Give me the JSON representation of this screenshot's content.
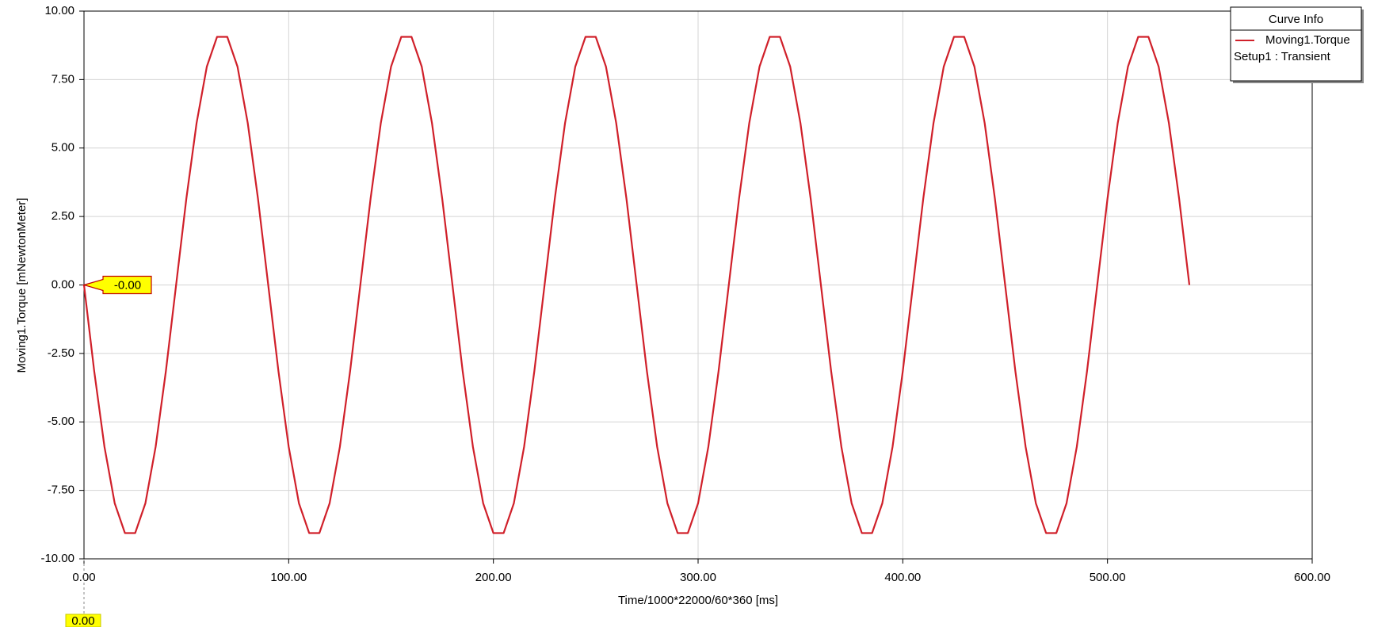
{
  "chart_data": {
    "type": "line",
    "x_label": "Time/1000*22000/60*360 [ms]",
    "y_label": "Moving1.Torque [mNewtonMeter]",
    "legend_title": "Curve Info",
    "legend_subtitle": "Setup1 : Transient",
    "legend_position": "top-right",
    "grid": true,
    "xlim": [
      0,
      600
    ],
    "ylim": [
      -10,
      10
    ],
    "xticks": [
      {
        "value": 0,
        "label": "0.00"
      },
      {
        "value": 100,
        "label": "100.00"
      },
      {
        "value": 200,
        "label": "200.00"
      },
      {
        "value": 300,
        "label": "300.00"
      },
      {
        "value": 400,
        "label": "400.00"
      },
      {
        "value": 500,
        "label": "500.00"
      },
      {
        "value": 600,
        "label": "600.00"
      }
    ],
    "yticks": [
      {
        "value": -10,
        "label": "-10.00"
      },
      {
        "value": -7.5,
        "label": "-7.50"
      },
      {
        "value": -5,
        "label": "-5.00"
      },
      {
        "value": -2.5,
        "label": "-2.50"
      },
      {
        "value": 0,
        "label": "0.00"
      },
      {
        "value": 2.5,
        "label": "2.50"
      },
      {
        "value": 5,
        "label": "5.00"
      },
      {
        "value": 7.5,
        "label": "7.50"
      },
      {
        "value": 10,
        "label": "10.00"
      }
    ],
    "markers": [
      {
        "x": 0,
        "y": 0,
        "y_label": "-0.00",
        "x_label": "0.00"
      }
    ],
    "x": [
      0,
      5,
      10,
      15,
      20,
      25,
      30,
      35,
      40,
      45,
      50,
      55,
      60,
      65,
      70,
      75,
      80,
      85,
      90,
      95,
      100,
      105,
      110,
      115,
      120,
      125,
      130,
      135,
      140,
      145,
      150,
      155,
      160,
      165,
      170,
      175,
      180,
      185,
      190,
      195,
      200,
      205,
      210,
      215,
      220,
      225,
      230,
      235,
      240,
      245,
      250,
      255,
      260,
      265,
      270,
      275,
      280,
      285,
      290,
      295,
      300,
      305,
      310,
      315,
      320,
      325,
      330,
      335,
      340,
      345,
      350,
      355,
      360,
      365,
      370,
      375,
      380,
      385,
      390,
      395,
      400,
      405,
      410,
      415,
      420,
      425,
      430,
      435,
      440,
      445,
      450,
      455,
      460,
      465,
      470,
      475,
      480,
      485,
      490,
      495,
      500,
      505,
      510,
      515,
      520,
      525,
      530,
      535,
      540
    ],
    "series": [
      {
        "name": "Moving1.Torque",
        "color": "#d0202a",
        "values": [
          0,
          -3.15,
          -5.91,
          -7.97,
          -9.06,
          -9.06,
          -7.97,
          -5.91,
          -3.15,
          0,
          3.15,
          5.91,
          7.97,
          9.06,
          9.06,
          7.97,
          5.91,
          3.15,
          0,
          -3.15,
          -5.91,
          -7.97,
          -9.06,
          -9.06,
          -7.97,
          -5.91,
          -3.15,
          0,
          3.15,
          5.91,
          7.97,
          9.06,
          9.06,
          7.97,
          5.91,
          3.15,
          0,
          -3.15,
          -5.91,
          -7.97,
          -9.06,
          -9.06,
          -7.97,
          -5.91,
          -3.15,
          0,
          3.15,
          5.91,
          7.97,
          9.06,
          9.06,
          7.97,
          5.91,
          3.15,
          0,
          -3.15,
          -5.91,
          -7.97,
          -9.06,
          -9.06,
          -7.97,
          -5.91,
          -3.15,
          0,
          3.15,
          5.91,
          7.97,
          9.06,
          9.06,
          7.97,
          5.91,
          3.15,
          0,
          -3.15,
          -5.91,
          -7.97,
          -9.06,
          -9.06,
          -7.97,
          -5.91,
          -3.15,
          0,
          3.15,
          5.91,
          7.97,
          9.06,
          9.06,
          7.97,
          5.91,
          3.15,
          0,
          -3.15,
          -5.91,
          -7.97,
          -9.06,
          -9.06,
          -7.97,
          -5.91,
          -3.15,
          0,
          3.15,
          5.91,
          7.97,
          9.06,
          9.06,
          7.97,
          5.91,
          3.15,
          0
        ]
      }
    ]
  }
}
